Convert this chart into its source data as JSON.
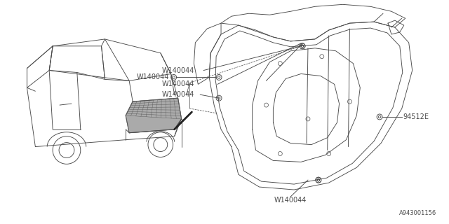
{
  "background_color": "#ffffff",
  "line_color": "#4a4a4a",
  "text_color": "#4a4a4a",
  "diagram_id": "A943001156",
  "labels": {
    "part1": "94512E",
    "bolt1": "W140044",
    "bolt2": "W140044",
    "bolt3": "W140044"
  },
  "figsize": [
    6.4,
    3.2
  ],
  "dpi": 100
}
